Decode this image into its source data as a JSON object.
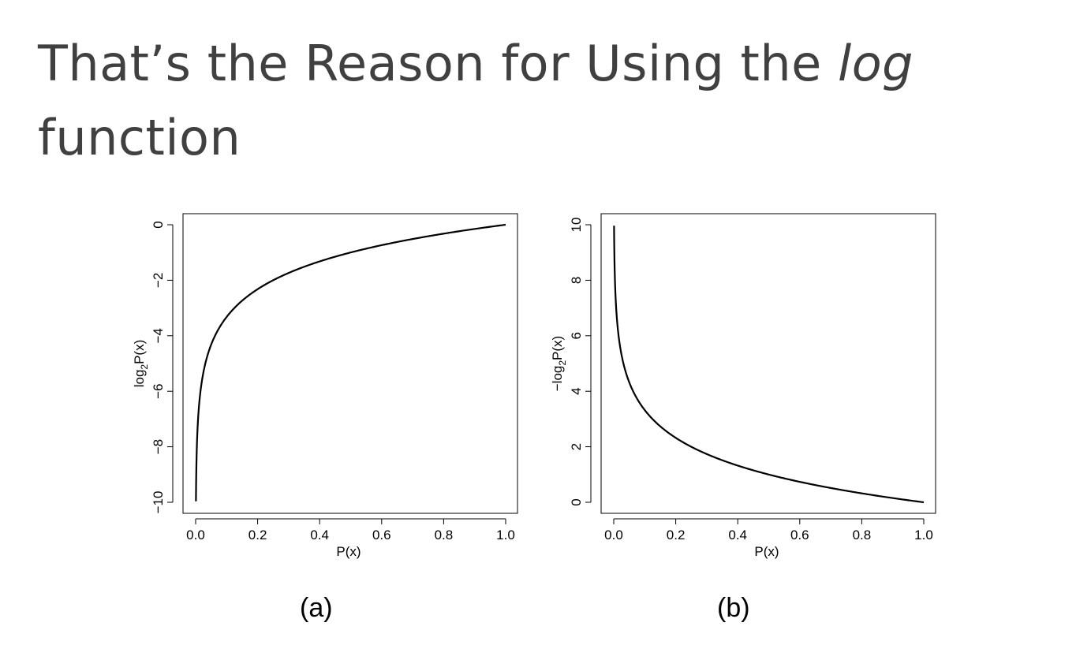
{
  "slide": {
    "title_main": "That’s the Reason for Using the ",
    "title_italic": "log",
    "title_line2": "function"
  },
  "chart_data": [
    {
      "type": "line",
      "caption": "(a)",
      "xlabel": "P(x)",
      "ylabel": "log2P(x)",
      "ylabel_parts": {
        "pre": "",
        "base": "log",
        "sub": "2",
        "post": "P(x)"
      },
      "function": "log2",
      "x_domain": [
        0.001,
        1.0
      ],
      "xlim": [
        0,
        1
      ],
      "ylim": [
        -10,
        0
      ],
      "xticks": [
        0.0,
        0.2,
        0.4,
        0.6,
        0.8,
        1.0
      ],
      "xtick_labels": [
        "0.0",
        "0.2",
        "0.4",
        "0.6",
        "0.8",
        "1.0"
      ],
      "yticks": [
        0,
        -2,
        -4,
        -6,
        -8,
        -10
      ],
      "ytick_labels": [
        "0",
        "−2",
        "−4",
        "−6",
        "−8",
        "−10"
      ],
      "series": [
        {
          "x": [
            0.001,
            0.005,
            0.01,
            0.02,
            0.03,
            0.05,
            0.07,
            0.1,
            0.15,
            0.2,
            0.25,
            0.3,
            0.4,
            0.5,
            0.6,
            0.7,
            0.8,
            0.9,
            1.0
          ],
          "y": [
            -9.97,
            -7.64,
            -6.64,
            -5.64,
            -5.06,
            -4.32,
            -3.84,
            -3.32,
            -2.74,
            -2.32,
            -2.0,
            -1.74,
            -1.32,
            -1.0,
            -0.74,
            -0.51,
            -0.32,
            -0.15,
            0.0
          ]
        }
      ],
      "grid": false,
      "color": "#000000"
    },
    {
      "type": "line",
      "caption": "(b)",
      "xlabel": "P(x)",
      "ylabel": "−log2P(x)",
      "ylabel_parts": {
        "pre": "−",
        "base": "log",
        "sub": "2",
        "post": "P(x)"
      },
      "function": "neglog2",
      "x_domain": [
        0.001,
        1.0
      ],
      "xlim": [
        0,
        1
      ],
      "ylim": [
        0,
        10
      ],
      "xticks": [
        0.0,
        0.2,
        0.4,
        0.6,
        0.8,
        1.0
      ],
      "xtick_labels": [
        "0.0",
        "0.2",
        "0.4",
        "0.6",
        "0.8",
        "1.0"
      ],
      "yticks": [
        0,
        2,
        4,
        6,
        8,
        10
      ],
      "ytick_labels": [
        "0",
        "2",
        "4",
        "6",
        "8",
        "10"
      ],
      "series": [
        {
          "x": [
            0.001,
            0.005,
            0.01,
            0.02,
            0.03,
            0.05,
            0.07,
            0.1,
            0.15,
            0.2,
            0.25,
            0.3,
            0.4,
            0.5,
            0.6,
            0.7,
            0.8,
            0.9,
            1.0
          ],
          "y": [
            9.97,
            7.64,
            6.64,
            5.64,
            5.06,
            4.32,
            3.84,
            3.32,
            2.74,
            2.32,
            2.0,
            1.74,
            1.32,
            1.0,
            0.74,
            0.51,
            0.32,
            0.15,
            0.0
          ]
        }
      ],
      "grid": false,
      "color": "#000000"
    }
  ]
}
